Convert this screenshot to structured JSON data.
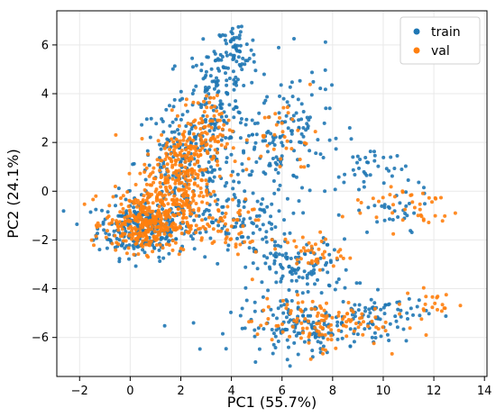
{
  "chart_data": {
    "type": "scatter",
    "xlabel": "PC1 (55.7%)",
    "ylabel": "PC2 (24.1%)",
    "xlim": [
      -2.9,
      14.1
    ],
    "ylim": [
      -7.6,
      7.4
    ],
    "xticks": [
      -2,
      0,
      2,
      4,
      6,
      8,
      10,
      12,
      14
    ],
    "yticks": [
      -6,
      -4,
      -2,
      0,
      2,
      4,
      6
    ],
    "xtick_labels": [
      "−2",
      "0",
      "2",
      "4",
      "6",
      "8",
      "10",
      "12",
      "14"
    ],
    "ytick_labels": [
      "−6",
      "−4",
      "−2",
      "0",
      "2",
      "4",
      "6"
    ],
    "grid": true,
    "legend_position": "top-right",
    "series": [
      {
        "name": "train",
        "color": "#1f77b4",
        "clusters": [
          {
            "center": [
              0.5,
              -1.5
            ],
            "spread": [
              0.9,
              0.6
            ],
            "n": 260
          },
          {
            "center": [
              2.2,
              1.2
            ],
            "spread": [
              1.0,
              1.2
            ],
            "n": 200
          },
          {
            "center": [
              3.4,
              4.0
            ],
            "spread": [
              0.6,
              1.0
            ],
            "n": 120
          },
          {
            "center": [
              4.2,
              5.6
            ],
            "spread": [
              0.4,
              0.7
            ],
            "n": 60
          },
          {
            "center": [
              5.5,
              2.0
            ],
            "spread": [
              1.0,
              1.0
            ],
            "n": 90
          },
          {
            "center": [
              4.0,
              -1.2
            ],
            "spread": [
              1.2,
              0.8
            ],
            "n": 120
          },
          {
            "center": [
              6.8,
              -3.2
            ],
            "spread": [
              1.0,
              0.6
            ],
            "n": 110
          },
          {
            "center": [
              7.0,
              -5.6
            ],
            "spread": [
              1.5,
              0.5
            ],
            "n": 160
          },
          {
            "center": [
              10.0,
              -5.0
            ],
            "spread": [
              0.9,
              0.4
            ],
            "n": 60
          },
          {
            "center": [
              9.5,
              0.8
            ],
            "spread": [
              0.7,
              0.6
            ],
            "n": 40
          },
          {
            "center": [
              6.8,
              3.0
            ],
            "spread": [
              0.8,
              1.2
            ],
            "n": 60
          },
          {
            "center": [
              10.3,
              -1.0
            ],
            "spread": [
              0.8,
              0.5
            ],
            "n": 30
          }
        ]
      },
      {
        "name": "val",
        "color": "#ff7f0e",
        "clusters": [
          {
            "center": [
              0.6,
              -1.3
            ],
            "spread": [
              0.8,
              0.6
            ],
            "n": 320
          },
          {
            "center": [
              1.8,
              0.2
            ],
            "spread": [
              0.7,
              1.0
            ],
            "n": 220
          },
          {
            "center": [
              2.5,
              1.8
            ],
            "spread": [
              0.6,
              0.7
            ],
            "n": 120
          },
          {
            "center": [
              3.2,
              3.0
            ],
            "spread": [
              0.4,
              0.5
            ],
            "n": 40
          },
          {
            "center": [
              6.0,
              2.2
            ],
            "spread": [
              0.7,
              0.8
            ],
            "n": 35
          },
          {
            "center": [
              7.2,
              -2.5
            ],
            "spread": [
              0.6,
              0.4
            ],
            "n": 40
          },
          {
            "center": [
              7.4,
              -5.4
            ],
            "spread": [
              1.3,
              0.5
            ],
            "n": 120
          },
          {
            "center": [
              10.8,
              -0.6
            ],
            "spread": [
              1.2,
              0.5
            ],
            "n": 40
          },
          {
            "center": [
              12.0,
              -4.6
            ],
            "spread": [
              0.6,
              0.3
            ],
            "n": 20
          },
          {
            "center": [
              3.7,
              -1.5
            ],
            "spread": [
              0.8,
              0.6
            ],
            "n": 60
          }
        ]
      }
    ]
  },
  "legend": {
    "items": [
      {
        "label": "train",
        "color": "#1f77b4"
      },
      {
        "label": "val",
        "color": "#ff7f0e"
      }
    ]
  }
}
